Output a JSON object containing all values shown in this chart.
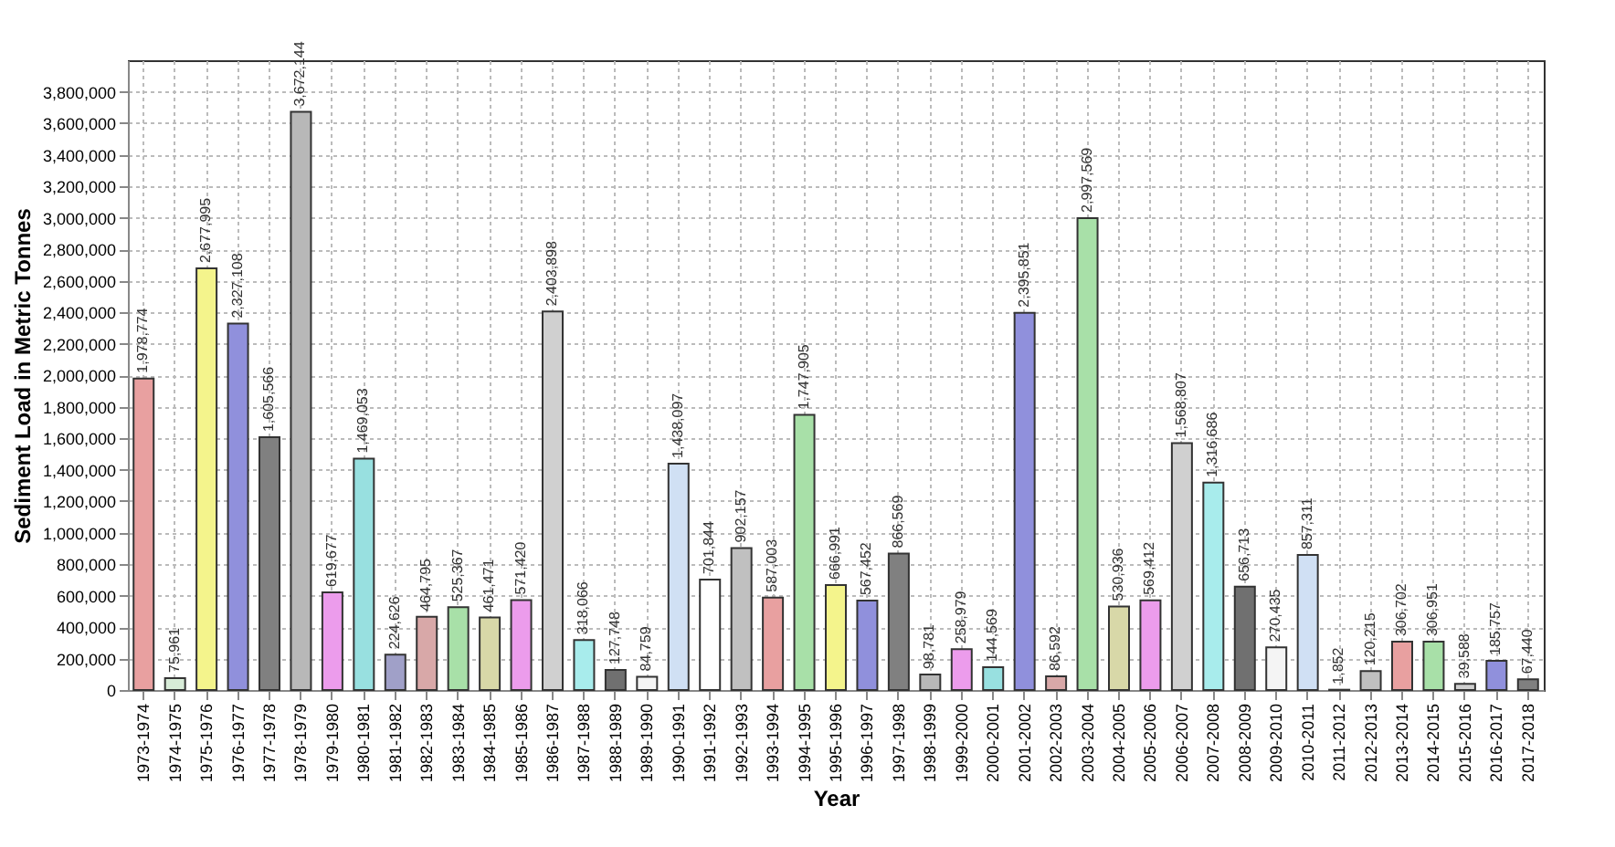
{
  "chart_data": {
    "type": "bar",
    "xlabel": "Year",
    "ylabel": "Sediment Load in Metric Tonnes",
    "categories": [
      "1973-1974",
      "1974-1975",
      "1975-1976",
      "1976-1977",
      "1977-1978",
      "1978-1979",
      "1979-1980",
      "1980-1981",
      "1981-1982",
      "1982-1983",
      "1983-1984",
      "1984-1985",
      "1985-1986",
      "1986-1987",
      "1987-1988",
      "1988-1989",
      "1989-1990",
      "1990-1991",
      "1991-1992",
      "1992-1993",
      "1993-1994",
      "1994-1995",
      "1995-1996",
      "1996-1997",
      "1997-1998",
      "1998-1999",
      "1999-2000",
      "2000-2001",
      "2001-2002",
      "2002-2003",
      "2003-2004",
      "2004-2005",
      "2005-2006",
      "2006-2007",
      "2007-2008",
      "2008-2009",
      "2009-2010",
      "2010-2011",
      "2011-2012",
      "2012-2013",
      "2013-2014",
      "2014-2015",
      "2015-2016",
      "2016-2017",
      "2017-2018"
    ],
    "values": [
      1978774,
      75961,
      2677995,
      2327108,
      1605566,
      3672144,
      619677,
      1469053,
      224626,
      464795,
      525367,
      461471,
      571420,
      2403898,
      318066,
      127748,
      84759,
      1438097,
      701844,
      902157,
      587003,
      1747905,
      666991,
      567452,
      866569,
      98781,
      258979,
      144569,
      2395851,
      86592,
      2997569,
      530936,
      569412,
      1568807,
      1316686,
      656713,
      270435,
      857311,
      1852,
      120215,
      306702,
      306951,
      39588,
      185757,
      67440
    ],
    "value_labels": [
      "1,978,774",
      "75,961",
      "2,677,995",
      "2,327,108",
      "1,605,566",
      "3,672,144",
      "619,677",
      "1,469,053",
      "224,626",
      "464,795",
      "525,367",
      "461,471",
      "571,420",
      "2,403,898",
      "318,066",
      "127,748",
      "84,759",
      "1,438,097",
      "701,844",
      "902,157",
      "587,003",
      "1,747,905",
      "666,991",
      "567,452",
      "866,569",
      "98,781",
      "258,979",
      "144,569",
      "2,395,851",
      "86,592",
      "2,997,569",
      "530,936",
      "569,412",
      "1,568,807",
      "1,316,686",
      "656,713",
      "270,435",
      "857,311",
      "1,852",
      "120,215",
      "306,702",
      "306,951",
      "39,588",
      "185,757",
      "67,440"
    ],
    "colors": [
      "#e8a0a0",
      "#d8ecd8",
      "#f4f48c",
      "#9090dc",
      "#808080",
      "#b8b8b8",
      "#ec9cec",
      "#98e0e0",
      "#a0a0c8",
      "#d8a8a8",
      "#a8e0a8",
      "#d8d8a8",
      "#ec9cec",
      "#d0d0d0",
      "#a8ecec",
      "#707070",
      "#f4f4f4",
      "#d0e0f4",
      "#ffffff",
      "#c0c0c0",
      "#e8a0a0",
      "#a8e0a8",
      "#f4f48c",
      "#9090dc",
      "#808080",
      "#b8b8b8",
      "#ec9cec",
      "#98e0e0",
      "#9090dc",
      "#d8a8a8",
      "#a8e0a8",
      "#d8d8a8",
      "#ec9cec",
      "#d0d0d0",
      "#a8ecec",
      "#707070",
      "#f4f4f4",
      "#d0e0f4",
      "#ffffff",
      "#c0c0c0",
      "#e8a0a0",
      "#a8e0a8",
      "#d0d0d0",
      "#9090dc",
      "#808080"
    ],
    "ylim": [
      0,
      4000000
    ],
    "yticks": [
      {
        "value": 0,
        "label": "0"
      },
      {
        "value": 200000,
        "label": "200,000"
      },
      {
        "value": 400000,
        "label": "400,000"
      },
      {
        "value": 600000,
        "label": "600,000"
      },
      {
        "value": 800000,
        "label": "800,000"
      },
      {
        "value": 1000000,
        "label": "1,000,000"
      },
      {
        "value": 1200000,
        "label": "1,200,000"
      },
      {
        "value": 1400000,
        "label": "1,400,000"
      },
      {
        "value": 1600000,
        "label": "1,600,000"
      },
      {
        "value": 1800000,
        "label": "1,800,000"
      },
      {
        "value": 2000000,
        "label": "2,000,000"
      },
      {
        "value": 2200000,
        "label": "2,200,000"
      },
      {
        "value": 2400000,
        "label": "2,400,000"
      },
      {
        "value": 2600000,
        "label": "2,600,000"
      },
      {
        "value": 2800000,
        "label": "2,800,000"
      },
      {
        "value": 3000000,
        "label": "3,000,000"
      },
      {
        "value": 3200000,
        "label": "3,200,000"
      },
      {
        "value": 3400000,
        "label": "3,400,000"
      },
      {
        "value": 3600000,
        "label": "3,600,000"
      },
      {
        "value": 3800000,
        "label": "3,800,000"
      }
    ],
    "grid": true,
    "data_labels": true
  }
}
